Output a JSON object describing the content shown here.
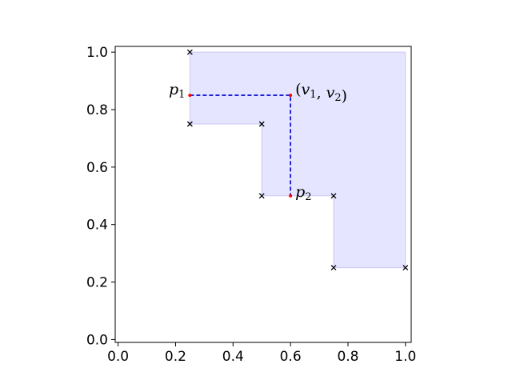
{
  "chart_data": {
    "type": "scatter",
    "xlim": [
      -0.01,
      1.02
    ],
    "ylim": [
      -0.01,
      1.02
    ],
    "x_ticks": [
      0.0,
      0.2,
      0.4,
      0.6,
      0.8,
      1.0
    ],
    "y_ticks": [
      0.0,
      0.2,
      0.4,
      0.6,
      0.8,
      1.0
    ],
    "x_tick_labels": [
      "0.0",
      "0.2",
      "0.4",
      "0.6",
      "0.8",
      "1.0"
    ],
    "y_tick_labels": [
      "0.0",
      "0.2",
      "0.4",
      "0.6",
      "0.8",
      "1.0"
    ],
    "grid": false,
    "region_fill": "#e5e5ff",
    "region_edge": "#c8c8f5",
    "region_boundary": [
      [
        0.25,
        1.0
      ],
      [
        0.25,
        0.75
      ],
      [
        0.5,
        0.75
      ],
      [
        0.5,
        0.5
      ],
      [
        0.75,
        0.5
      ],
      [
        0.75,
        0.25
      ],
      [
        1.0,
        0.25
      ],
      [
        1.0,
        1.0
      ]
    ],
    "staircase_points": [
      [
        0.25,
        1.0
      ],
      [
        0.25,
        0.75
      ],
      [
        0.5,
        0.75
      ],
      [
        0.5,
        0.5
      ],
      [
        0.75,
        0.5
      ],
      [
        0.75,
        0.25
      ],
      [
        1.0,
        0.25
      ]
    ],
    "marker_color": "#000000",
    "dashed_color": "#0000cc",
    "dashed_path": [
      [
        0.25,
        0.85
      ],
      [
        0.6,
        0.85
      ],
      [
        0.6,
        0.5
      ]
    ],
    "highlight_color": "#ff0000",
    "highlight_points": [
      [
        0.25,
        0.85
      ],
      [
        0.6,
        0.85
      ],
      [
        0.6,
        0.5
      ]
    ],
    "annotations": [
      {
        "id": "p1",
        "x": 0.25,
        "y": 0.85,
        "text": "p",
        "sub": "1",
        "anchor": "end"
      },
      {
        "id": "v",
        "x": 0.6,
        "y": 0.85,
        "text": "(v",
        "sub1": "1",
        "mid": ", v",
        "sub2": "2",
        "tail": ")",
        "anchor": "start"
      },
      {
        "id": "p2",
        "x": 0.6,
        "y": 0.5,
        "text": "p",
        "sub": "2",
        "anchor": "start"
      }
    ]
  }
}
